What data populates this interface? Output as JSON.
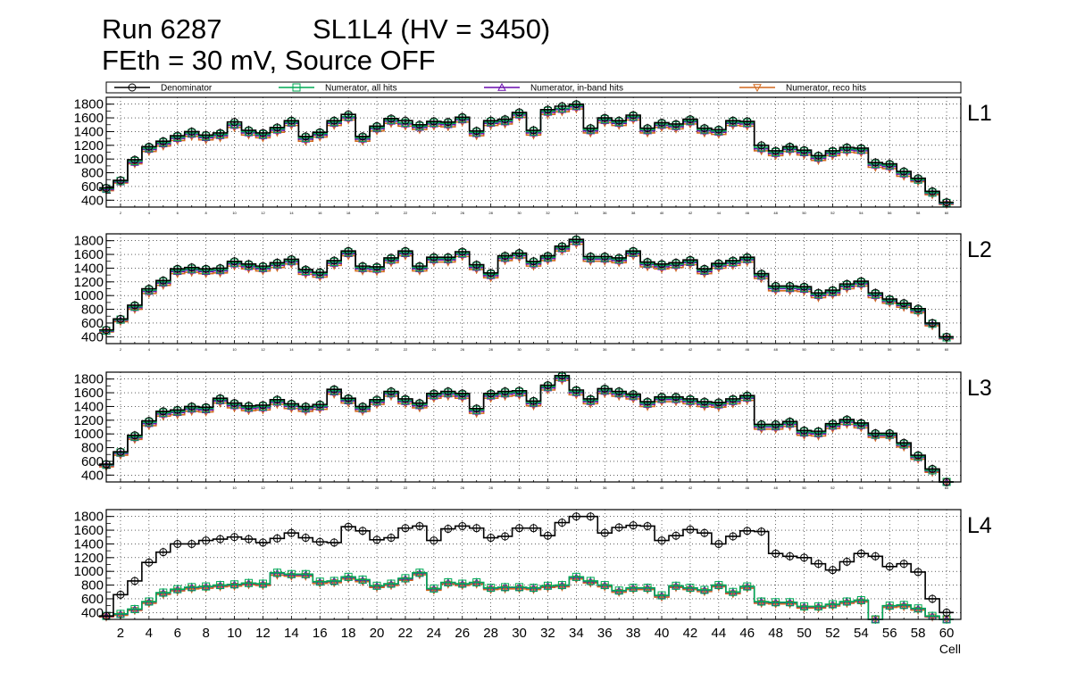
{
  "header": {
    "run": "Run 6287",
    "layer": "SL1L4 (HV = 3450)",
    "line2": "FEth = 30 mV, Source OFF"
  },
  "legend": {
    "entries": [
      {
        "label": "Denominator",
        "color": "#000000",
        "marker": "circle"
      },
      {
        "label": "Numerator, all hits",
        "color": "#00aa55",
        "marker": "square"
      },
      {
        "label": "Numerator, in-band hits",
        "color": "#6a0dad",
        "marker": "triangle-up"
      },
      {
        "label": "Numerator, reco hits",
        "color": "#d2691e",
        "marker": "triangle-down"
      }
    ]
  },
  "chart_data": {
    "type": "line",
    "style": "histogram-steps",
    "xlabel": "Cell",
    "ylabel": "",
    "xlim": [
      1,
      61
    ],
    "x_ticks": [
      2,
      4,
      6,
      8,
      10,
      12,
      14,
      16,
      18,
      20,
      22,
      24,
      26,
      28,
      30,
      32,
      34,
      36,
      38,
      40,
      42,
      44,
      46,
      48,
      50,
      52,
      54,
      56,
      58,
      60
    ],
    "y_ticks": [
      400,
      600,
      800,
      1000,
      1200,
      1400,
      1600,
      1800
    ],
    "ylim": [
      300,
      1900
    ],
    "grid": true,
    "panels": [
      {
        "label": "L1",
        "denominator": [
          580,
          690,
          990,
          1180,
          1260,
          1340,
          1400,
          1350,
          1380,
          1540,
          1420,
          1380,
          1460,
          1560,
          1330,
          1390,
          1560,
          1650,
          1330,
          1480,
          1590,
          1560,
          1500,
          1550,
          1540,
          1610,
          1410,
          1560,
          1580,
          1680,
          1420,
          1720,
          1770,
          1800,
          1450,
          1600,
          1560,
          1640,
          1450,
          1530,
          1510,
          1580,
          1450,
          1430,
          1560,
          1550,
          1200,
          1120,
          1180,
          1130,
          1050,
          1120,
          1170,
          1160,
          950,
          930,
          820,
          720,
          530,
          370
        ],
        "num_all": [
          570,
          680,
          970,
          1160,
          1240,
          1320,
          1380,
          1330,
          1360,
          1510,
          1400,
          1360,
          1440,
          1540,
          1310,
          1370,
          1540,
          1620,
          1310,
          1460,
          1570,
          1530,
          1480,
          1530,
          1520,
          1590,
          1390,
          1540,
          1560,
          1660,
          1400,
          1700,
          1740,
          1780,
          1430,
          1580,
          1540,
          1620,
          1430,
          1510,
          1490,
          1560,
          1430,
          1410,
          1540,
          1530,
          1170,
          1100,
          1160,
          1110,
          1030,
          1100,
          1150,
          1140,
          930,
          910,
          800,
          700,
          510,
          360
        ],
        "num_inband": [
          555,
          665,
          950,
          1140,
          1220,
          1300,
          1360,
          1310,
          1340,
          1490,
          1380,
          1340,
          1420,
          1520,
          1290,
          1350,
          1520,
          1600,
          1290,
          1440,
          1550,
          1510,
          1460,
          1510,
          1500,
          1570,
          1370,
          1520,
          1540,
          1640,
          1380,
          1680,
          1720,
          1760,
          1410,
          1560,
          1520,
          1600,
          1410,
          1490,
          1470,
          1540,
          1410,
          1390,
          1520,
          1510,
          1150,
          1080,
          1140,
          1090,
          1010,
          1080,
          1130,
          1120,
          910,
          890,
          780,
          690,
          500,
          350
        ],
        "num_reco": [
          540,
          650,
          930,
          1110,
          1190,
          1270,
          1330,
          1280,
          1310,
          1460,
          1350,
          1310,
          1390,
          1490,
          1260,
          1320,
          1490,
          1570,
          1260,
          1410,
          1520,
          1480,
          1430,
          1480,
          1470,
          1540,
          1340,
          1490,
          1510,
          1610,
          1350,
          1650,
          1690,
          1730,
          1380,
          1530,
          1490,
          1570,
          1380,
          1460,
          1440,
          1510,
          1380,
          1360,
          1490,
          1480,
          1120,
          1050,
          1110,
          1060,
          980,
          1050,
          1100,
          1090,
          880,
          860,
          750,
          670,
          480,
          340
        ]
      },
      {
        "label": "L2",
        "denominator": [
          500,
          660,
          860,
          1100,
          1220,
          1390,
          1410,
          1390,
          1400,
          1500,
          1460,
          1430,
          1480,
          1530,
          1380,
          1340,
          1510,
          1650,
          1430,
          1420,
          1550,
          1650,
          1430,
          1560,
          1560,
          1640,
          1450,
          1330,
          1580,
          1620,
          1500,
          1580,
          1720,
          1820,
          1570,
          1570,
          1550,
          1650,
          1490,
          1460,
          1480,
          1520,
          1390,
          1470,
          1510,
          1560,
          1320,
          1140,
          1140,
          1130,
          1040,
          1080,
          1170,
          1210,
          1040,
          950,
          890,
          810,
          600,
          400
        ],
        "num_all": [
          490,
          650,
          840,
          1080,
          1200,
          1370,
          1390,
          1370,
          1380,
          1480,
          1440,
          1410,
          1460,
          1510,
          1360,
          1320,
          1490,
          1630,
          1410,
          1400,
          1530,
          1630,
          1410,
          1540,
          1540,
          1620,
          1430,
          1310,
          1560,
          1600,
          1480,
          1560,
          1700,
          1800,
          1550,
          1550,
          1530,
          1630,
          1470,
          1440,
          1460,
          1500,
          1370,
          1450,
          1490,
          1540,
          1300,
          1120,
          1120,
          1110,
          1020,
          1060,
          1150,
          1190,
          1020,
          930,
          870,
          790,
          590,
          390
        ],
        "num_inband": [
          480,
          640,
          825,
          1060,
          1180,
          1350,
          1370,
          1350,
          1360,
          1460,
          1420,
          1390,
          1440,
          1490,
          1340,
          1300,
          1470,
          1610,
          1390,
          1380,
          1510,
          1610,
          1390,
          1520,
          1520,
          1600,
          1410,
          1290,
          1540,
          1580,
          1460,
          1540,
          1680,
          1780,
          1530,
          1530,
          1510,
          1610,
          1450,
          1420,
          1440,
          1480,
          1350,
          1430,
          1470,
          1520,
          1280,
          1100,
          1100,
          1090,
          1000,
          1040,
          1130,
          1170,
          1000,
          915,
          855,
          775,
          580,
          380
        ],
        "num_reco": [
          470,
          620,
          800,
          1030,
          1150,
          1320,
          1340,
          1320,
          1330,
          1430,
          1390,
          1360,
          1410,
          1460,
          1310,
          1270,
          1440,
          1580,
          1360,
          1350,
          1480,
          1580,
          1360,
          1490,
          1490,
          1570,
          1380,
          1260,
          1510,
          1550,
          1430,
          1510,
          1650,
          1750,
          1500,
          1500,
          1480,
          1580,
          1420,
          1390,
          1410,
          1450,
          1320,
          1400,
          1440,
          1490,
          1250,
          1070,
          1070,
          1060,
          970,
          1010,
          1100,
          1140,
          970,
          890,
          830,
          750,
          560,
          370
        ]
      },
      {
        "label": "L3",
        "denominator": [
          560,
          740,
          980,
          1190,
          1330,
          1350,
          1400,
          1390,
          1520,
          1450,
          1410,
          1420,
          1500,
          1440,
          1400,
          1430,
          1650,
          1520,
          1400,
          1500,
          1620,
          1510,
          1450,
          1590,
          1620,
          1590,
          1370,
          1590,
          1620,
          1630,
          1480,
          1710,
          1850,
          1640,
          1510,
          1660,
          1620,
          1580,
          1470,
          1540,
          1540,
          1510,
          1470,
          1460,
          1510,
          1560,
          1140,
          1140,
          1180,
          1050,
          1040,
          1150,
          1210,
          1160,
          1010,
          1010,
          870,
          690,
          490,
          300
        ],
        "num_all": [
          550,
          730,
          960,
          1170,
          1310,
          1330,
          1380,
          1370,
          1500,
          1430,
          1390,
          1400,
          1480,
          1420,
          1380,
          1410,
          1630,
          1500,
          1380,
          1480,
          1600,
          1490,
          1430,
          1570,
          1600,
          1570,
          1350,
          1570,
          1600,
          1610,
          1460,
          1690,
          1830,
          1620,
          1490,
          1640,
          1600,
          1560,
          1450,
          1520,
          1520,
          1490,
          1450,
          1440,
          1490,
          1540,
          1120,
          1120,
          1160,
          1030,
          1020,
          1130,
          1190,
          1140,
          990,
          990,
          850,
          670,
          470,
          290
        ],
        "num_inband": [
          540,
          715,
          945,
          1150,
          1290,
          1310,
          1360,
          1350,
          1480,
          1410,
          1370,
          1380,
          1460,
          1400,
          1360,
          1390,
          1610,
          1480,
          1360,
          1460,
          1580,
          1470,
          1410,
          1550,
          1580,
          1550,
          1330,
          1550,
          1580,
          1590,
          1440,
          1670,
          1810,
          1600,
          1470,
          1620,
          1580,
          1540,
          1430,
          1500,
          1500,
          1470,
          1430,
          1420,
          1470,
          1520,
          1100,
          1100,
          1140,
          1010,
          1000,
          1110,
          1170,
          1120,
          975,
          975,
          835,
          655,
          460,
          285
        ],
        "num_reco": [
          520,
          690,
          920,
          1120,
          1260,
          1280,
          1330,
          1320,
          1450,
          1380,
          1340,
          1350,
          1430,
          1370,
          1330,
          1360,
          1580,
          1450,
          1330,
          1430,
          1550,
          1440,
          1380,
          1520,
          1550,
          1520,
          1300,
          1520,
          1550,
          1560,
          1410,
          1640,
          1780,
          1570,
          1440,
          1590,
          1550,
          1510,
          1400,
          1470,
          1470,
          1440,
          1400,
          1390,
          1440,
          1490,
          1070,
          1070,
          1110,
          980,
          970,
          1080,
          1140,
          1090,
          950,
          950,
          810,
          630,
          440,
          275
        ]
      },
      {
        "label": "L4",
        "denominator": [
          350,
          660,
          860,
          1130,
          1280,
          1400,
          1400,
          1450,
          1470,
          1500,
          1470,
          1420,
          1480,
          1560,
          1490,
          1430,
          1420,
          1650,
          1590,
          1460,
          1490,
          1630,
          1660,
          1450,
          1620,
          1660,
          1630,
          1490,
          1510,
          1630,
          1630,
          1520,
          1710,
          1800,
          1800,
          1560,
          1640,
          1670,
          1660,
          1450,
          1520,
          1610,
          1560,
          1400,
          1510,
          1590,
          1580,
          1260,
          1220,
          1200,
          1110,
          1020,
          1140,
          1260,
          1220,
          1070,
          1110,
          990,
          600,
          400
        ],
        "num_all": [
          350,
          380,
          450,
          560,
          690,
          740,
          770,
          780,
          800,
          810,
          830,
          820,
          980,
          960,
          960,
          850,
          860,
          920,
          880,
          790,
          820,
          900,
          980,
          750,
          840,
          820,
          840,
          760,
          770,
          770,
          760,
          790,
          800,
          920,
          860,
          800,
          720,
          760,
          760,
          650,
          790,
          760,
          730,
          800,
          700,
          780,
          560,
          550,
          550,
          490,
          490,
          520,
          560,
          580,
          290,
          500,
          510,
          460,
          350,
          290
        ],
        "num_inband": [
          345,
          375,
          445,
          555,
          685,
          735,
          765,
          775,
          795,
          805,
          825,
          815,
          970,
          950,
          950,
          845,
          855,
          910,
          870,
          785,
          815,
          890,
          970,
          745,
          835,
          815,
          835,
          755,
          765,
          765,
          755,
          785,
          795,
          910,
          850,
          795,
          715,
          755,
          755,
          645,
          785,
          755,
          725,
          795,
          695,
          775,
          555,
          545,
          545,
          485,
          485,
          515,
          555,
          575,
          285,
          495,
          505,
          455,
          345,
          285
        ],
        "num_reco": [
          335,
          360,
          430,
          535,
          665,
          715,
          745,
          755,
          775,
          785,
          805,
          795,
          945,
          930,
          930,
          825,
          835,
          890,
          850,
          765,
          795,
          870,
          950,
          725,
          815,
          795,
          815,
          735,
          745,
          745,
          735,
          765,
          775,
          890,
          830,
          775,
          695,
          735,
          735,
          625,
          765,
          735,
          705,
          775,
          675,
          755,
          535,
          525,
          525,
          465,
          465,
          495,
          535,
          555,
          275,
          475,
          485,
          435,
          335,
          275
        ]
      }
    ]
  }
}
